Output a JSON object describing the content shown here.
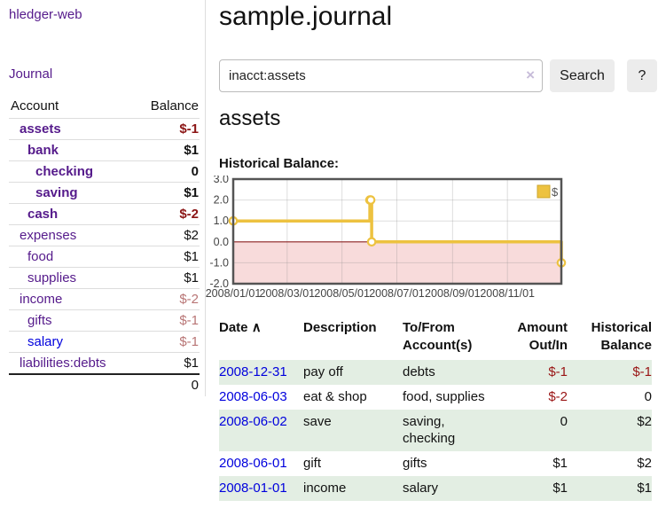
{
  "colors": {
    "purple_link": "#551a8b",
    "blue_link": "#0000dd",
    "negative_strong": "#8b1515",
    "negative_light": "#b87575",
    "table_negative": "#991414",
    "row_green": "#e3eee3",
    "chart_line": "#edc240",
    "chart_border": "#545454"
  },
  "sidebar": {
    "brand": "hledger-web",
    "journal_link": "Journal",
    "account_header": "Account",
    "balance_header": "Balance",
    "accounts": [
      {
        "name": "assets",
        "depth": 1,
        "bold": true,
        "balance": "$-1",
        "balance_style": "neg-strong"
      },
      {
        "name": "bank",
        "depth": 2,
        "bold": true,
        "balance": "$1",
        "balance_style": ""
      },
      {
        "name": "checking",
        "depth": 3,
        "bold": true,
        "balance": "0",
        "balance_style": ""
      },
      {
        "name": "saving",
        "depth": 3,
        "bold": true,
        "balance": "$1",
        "balance_style": ""
      },
      {
        "name": "cash",
        "depth": 2,
        "bold": true,
        "balance": "$-2",
        "balance_style": "neg-strong"
      },
      {
        "name": "expenses",
        "depth": 1,
        "bold": false,
        "balance": "$2",
        "balance_style": ""
      },
      {
        "name": "food",
        "depth": 2,
        "bold": false,
        "balance": "$1",
        "balance_style": ""
      },
      {
        "name": "supplies",
        "depth": 2,
        "bold": false,
        "balance": "$1",
        "balance_style": ""
      },
      {
        "name": "income",
        "depth": 1,
        "bold": false,
        "balance": "$-2",
        "balance_style": "neg-light"
      },
      {
        "name": "gifts",
        "depth": 2,
        "bold": false,
        "balance": "$-1",
        "balance_style": "neg-light"
      },
      {
        "name": "salary",
        "depth": 2,
        "bold": false,
        "link_color": "#0000dd",
        "balance": "$-1",
        "balance_style": "neg-light"
      },
      {
        "name": "liabilities:debts",
        "depth": 1,
        "bold": false,
        "balance": "$1",
        "balance_style": ""
      }
    ],
    "total": "0"
  },
  "main": {
    "title": "sample.journal",
    "search": {
      "value": "inacct:assets",
      "clear_icon": "×",
      "button_label": "Search",
      "help_label": "?"
    },
    "account_heading": "assets",
    "chart_label": "Historical Balance:"
  },
  "chart_data": {
    "type": "line",
    "step": true,
    "title": "Historical Balance",
    "legend": "$",
    "legend_position": "top-right",
    "grid": true,
    "x_range": [
      "2008-01-01",
      "2008-12-31"
    ],
    "ylim": [
      -2,
      3
    ],
    "y_ticks": [
      3,
      2,
      1,
      0,
      -1,
      -2
    ],
    "y_tick_labels": [
      "3.0",
      "2.0",
      "1.0",
      "0.0",
      "-1.0",
      "-2.0"
    ],
    "x_ticks": [
      "2008-01-01",
      "2008-03-01",
      "2008-05-01",
      "2008-07-01",
      "2008-09-01",
      "2008-11-01"
    ],
    "x_tick_labels": [
      "2008/01/01",
      "2008/03/01",
      "2008/05/01",
      "2008/07/01",
      "2008/09/01",
      "2008/11/01"
    ],
    "series": [
      {
        "name": "$",
        "color": "#edc240",
        "points": [
          {
            "x": "2008-01-01",
            "y": 1
          },
          {
            "x": "2008-06-01",
            "y": 2
          },
          {
            "x": "2008-06-02",
            "y": 2
          },
          {
            "x": "2008-06-03",
            "y": 0
          },
          {
            "x": "2008-12-31",
            "y": -1
          }
        ]
      }
    ],
    "negative_region_color": "#f8dbdb",
    "zero_line_color": "#8b2020"
  },
  "register": {
    "headers": {
      "date": "Date",
      "sort_icon": "∧",
      "description": "Description",
      "accounts": [
        "To/From",
        "Account(s)"
      ],
      "amount": [
        "Amount",
        "Out/In"
      ],
      "balance": [
        "Historical",
        "Balance"
      ]
    },
    "rows": [
      {
        "date": "2008-12-31",
        "description": "pay off",
        "accounts": "debts",
        "amount": "$-1",
        "amount_neg": true,
        "balance": "$-1",
        "balance_neg": true
      },
      {
        "date": "2008-06-03",
        "description": "eat & shop",
        "accounts": "food, supplies",
        "amount": "$-2",
        "amount_neg": true,
        "balance": "0",
        "balance_neg": false
      },
      {
        "date": "2008-06-02",
        "description": "save",
        "accounts": "saving, checking",
        "amount": "0",
        "amount_neg": false,
        "balance": "$2",
        "balance_neg": false
      },
      {
        "date": "2008-06-01",
        "description": "gift",
        "accounts": "gifts",
        "amount": "$1",
        "amount_neg": false,
        "balance": "$2",
        "balance_neg": false
      },
      {
        "date": "2008-01-01",
        "description": "income",
        "accounts": "salary",
        "amount": "$1",
        "amount_neg": false,
        "balance": "$1",
        "balance_neg": false
      }
    ]
  }
}
